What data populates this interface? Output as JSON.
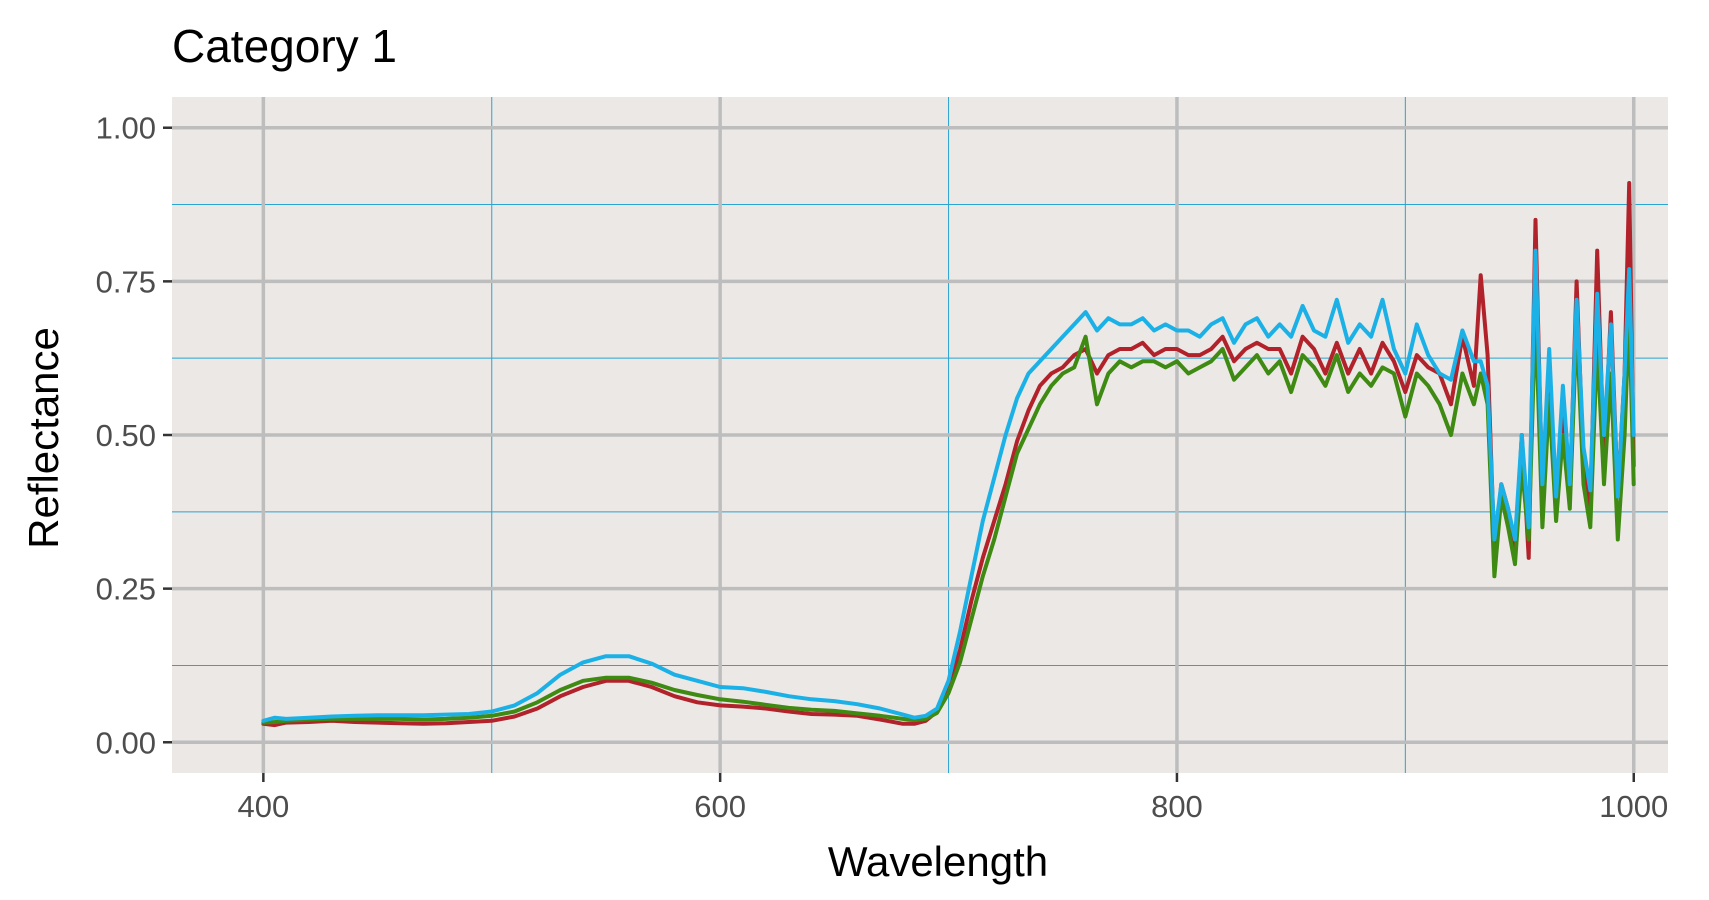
{
  "chart_data": {
    "type": "line",
    "title": "Category 1",
    "xlabel": "Wavelength",
    "ylabel": "Reflectance",
    "xlim": [
      360,
      1015
    ],
    "ylim": [
      -0.05,
      1.05
    ],
    "x_ticks": [
      400,
      600,
      800,
      1000
    ],
    "x_tick_labels": [
      "400",
      "600",
      "800",
      "1000"
    ],
    "x_minor_ticks": [
      500,
      700,
      900
    ],
    "y_ticks": [
      0,
      0.25,
      0.5,
      0.75,
      1.0
    ],
    "y_tick_labels": [
      "0.00",
      "0.25",
      "0.50",
      "0.75",
      "1.00"
    ],
    "y_minor_ticks": [
      0.125,
      0.375,
      0.625,
      0.875
    ],
    "grid": true,
    "legend": "none",
    "colors": {
      "panel_background": "#ebe8e6",
      "major_grid": "#bdbdbd",
      "minor_grid": "#2aa4d0"
    },
    "series": [
      {
        "color": "#b2222a",
        "x": [
          400,
          405,
          410,
          420,
          430,
          440,
          450,
          460,
          470,
          480,
          490,
          500,
          510,
          520,
          530,
          540,
          550,
          560,
          570,
          580,
          590,
          600,
          610,
          620,
          630,
          640,
          650,
          660,
          670,
          680,
          685,
          690,
          695,
          700,
          705,
          710,
          715,
          720,
          725,
          730,
          735,
          740,
          745,
          750,
          755,
          760,
          765,
          770,
          775,
          780,
          785,
          790,
          795,
          800,
          805,
          810,
          815,
          820,
          825,
          830,
          835,
          840,
          845,
          850,
          855,
          860,
          865,
          870,
          875,
          880,
          885,
          890,
          895,
          900,
          905,
          910,
          915,
          920,
          925,
          930,
          933,
          936,
          939,
          942,
          945,
          948,
          951,
          954,
          957,
          960,
          963,
          966,
          969,
          972,
          975,
          978,
          981,
          984,
          987,
          990,
          993,
          996,
          998,
          1000
        ],
        "y": [
          0.03,
          0.028,
          0.032,
          0.033,
          0.035,
          0.033,
          0.032,
          0.031,
          0.03,
          0.031,
          0.033,
          0.035,
          0.042,
          0.055,
          0.075,
          0.09,
          0.1,
          0.1,
          0.09,
          0.075,
          0.065,
          0.06,
          0.058,
          0.055,
          0.05,
          0.046,
          0.045,
          0.043,
          0.037,
          0.03,
          0.03,
          0.035,
          0.05,
          0.09,
          0.15,
          0.23,
          0.3,
          0.36,
          0.42,
          0.49,
          0.54,
          0.58,
          0.6,
          0.61,
          0.63,
          0.64,
          0.6,
          0.63,
          0.64,
          0.64,
          0.65,
          0.63,
          0.64,
          0.64,
          0.63,
          0.63,
          0.64,
          0.66,
          0.62,
          0.64,
          0.65,
          0.64,
          0.64,
          0.6,
          0.66,
          0.64,
          0.6,
          0.65,
          0.6,
          0.64,
          0.6,
          0.65,
          0.62,
          0.57,
          0.63,
          0.61,
          0.6,
          0.55,
          0.66,
          0.58,
          0.76,
          0.63,
          0.31,
          0.42,
          0.38,
          0.3,
          0.5,
          0.3,
          0.85,
          0.4,
          0.62,
          0.38,
          0.55,
          0.4,
          0.75,
          0.45,
          0.38,
          0.8,
          0.46,
          0.7,
          0.4,
          0.6,
          0.91,
          0.45
        ]
      },
      {
        "color": "#3f8a12",
        "x": [
          400,
          405,
          410,
          420,
          430,
          440,
          450,
          460,
          470,
          480,
          490,
          500,
          510,
          520,
          530,
          540,
          550,
          560,
          570,
          580,
          590,
          600,
          610,
          620,
          630,
          640,
          650,
          660,
          670,
          680,
          685,
          690,
          695,
          700,
          705,
          710,
          715,
          720,
          725,
          730,
          735,
          740,
          745,
          750,
          755,
          760,
          765,
          770,
          775,
          780,
          785,
          790,
          795,
          800,
          805,
          810,
          815,
          820,
          825,
          830,
          835,
          840,
          845,
          850,
          855,
          860,
          865,
          870,
          875,
          880,
          885,
          890,
          895,
          900,
          905,
          910,
          915,
          920,
          925,
          930,
          933,
          936,
          939,
          942,
          945,
          948,
          951,
          954,
          957,
          960,
          963,
          966,
          969,
          972,
          975,
          978,
          981,
          984,
          987,
          990,
          993,
          996,
          998,
          1000
        ],
        "y": [
          0.032,
          0.033,
          0.035,
          0.037,
          0.038,
          0.038,
          0.038,
          0.038,
          0.037,
          0.038,
          0.04,
          0.043,
          0.05,
          0.065,
          0.085,
          0.1,
          0.105,
          0.105,
          0.097,
          0.085,
          0.077,
          0.07,
          0.066,
          0.061,
          0.056,
          0.053,
          0.051,
          0.047,
          0.043,
          0.038,
          0.036,
          0.038,
          0.048,
          0.08,
          0.13,
          0.2,
          0.27,
          0.33,
          0.4,
          0.47,
          0.51,
          0.55,
          0.58,
          0.6,
          0.61,
          0.66,
          0.55,
          0.6,
          0.62,
          0.61,
          0.62,
          0.62,
          0.61,
          0.62,
          0.6,
          0.61,
          0.62,
          0.64,
          0.59,
          0.61,
          0.63,
          0.6,
          0.62,
          0.57,
          0.63,
          0.61,
          0.58,
          0.63,
          0.57,
          0.6,
          0.58,
          0.61,
          0.6,
          0.53,
          0.6,
          0.58,
          0.55,
          0.5,
          0.6,
          0.55,
          0.6,
          0.55,
          0.27,
          0.4,
          0.35,
          0.29,
          0.45,
          0.33,
          0.7,
          0.35,
          0.56,
          0.36,
          0.5,
          0.38,
          0.68,
          0.42,
          0.35,
          0.65,
          0.42,
          0.6,
          0.33,
          0.5,
          0.7,
          0.42
        ]
      },
      {
        "color": "#1cb1e6",
        "x": [
          400,
          405,
          410,
          420,
          430,
          440,
          450,
          460,
          470,
          480,
          490,
          500,
          510,
          520,
          530,
          540,
          550,
          560,
          570,
          580,
          590,
          600,
          610,
          620,
          630,
          640,
          650,
          660,
          670,
          680,
          685,
          690,
          695,
          700,
          705,
          710,
          715,
          720,
          725,
          730,
          735,
          740,
          745,
          750,
          755,
          760,
          765,
          770,
          775,
          780,
          785,
          790,
          795,
          800,
          805,
          810,
          815,
          820,
          825,
          830,
          835,
          840,
          845,
          850,
          855,
          860,
          865,
          870,
          875,
          880,
          885,
          890,
          895,
          900,
          905,
          910,
          915,
          920,
          925,
          930,
          933,
          936,
          939,
          942,
          945,
          948,
          951,
          954,
          957,
          960,
          963,
          966,
          969,
          972,
          975,
          978,
          981,
          984,
          987,
          990,
          993,
          996,
          998,
          1000
        ],
        "y": [
          0.035,
          0.04,
          0.038,
          0.04,
          0.042,
          0.043,
          0.044,
          0.044,
          0.044,
          0.045,
          0.046,
          0.05,
          0.06,
          0.08,
          0.11,
          0.13,
          0.14,
          0.14,
          0.128,
          0.11,
          0.1,
          0.09,
          0.088,
          0.082,
          0.075,
          0.07,
          0.067,
          0.062,
          0.055,
          0.045,
          0.04,
          0.043,
          0.055,
          0.1,
          0.18,
          0.27,
          0.36,
          0.43,
          0.5,
          0.56,
          0.6,
          0.62,
          0.64,
          0.66,
          0.68,
          0.7,
          0.67,
          0.69,
          0.68,
          0.68,
          0.69,
          0.67,
          0.68,
          0.67,
          0.67,
          0.66,
          0.68,
          0.69,
          0.65,
          0.68,
          0.69,
          0.66,
          0.68,
          0.66,
          0.71,
          0.67,
          0.66,
          0.72,
          0.65,
          0.68,
          0.66,
          0.72,
          0.64,
          0.6,
          0.68,
          0.63,
          0.6,
          0.59,
          0.67,
          0.62,
          0.62,
          0.58,
          0.33,
          0.42,
          0.38,
          0.33,
          0.5,
          0.35,
          0.8,
          0.42,
          0.64,
          0.4,
          0.58,
          0.42,
          0.72,
          0.48,
          0.41,
          0.73,
          0.5,
          0.68,
          0.4,
          0.6,
          0.77,
          0.5
        ]
      }
    ]
  }
}
